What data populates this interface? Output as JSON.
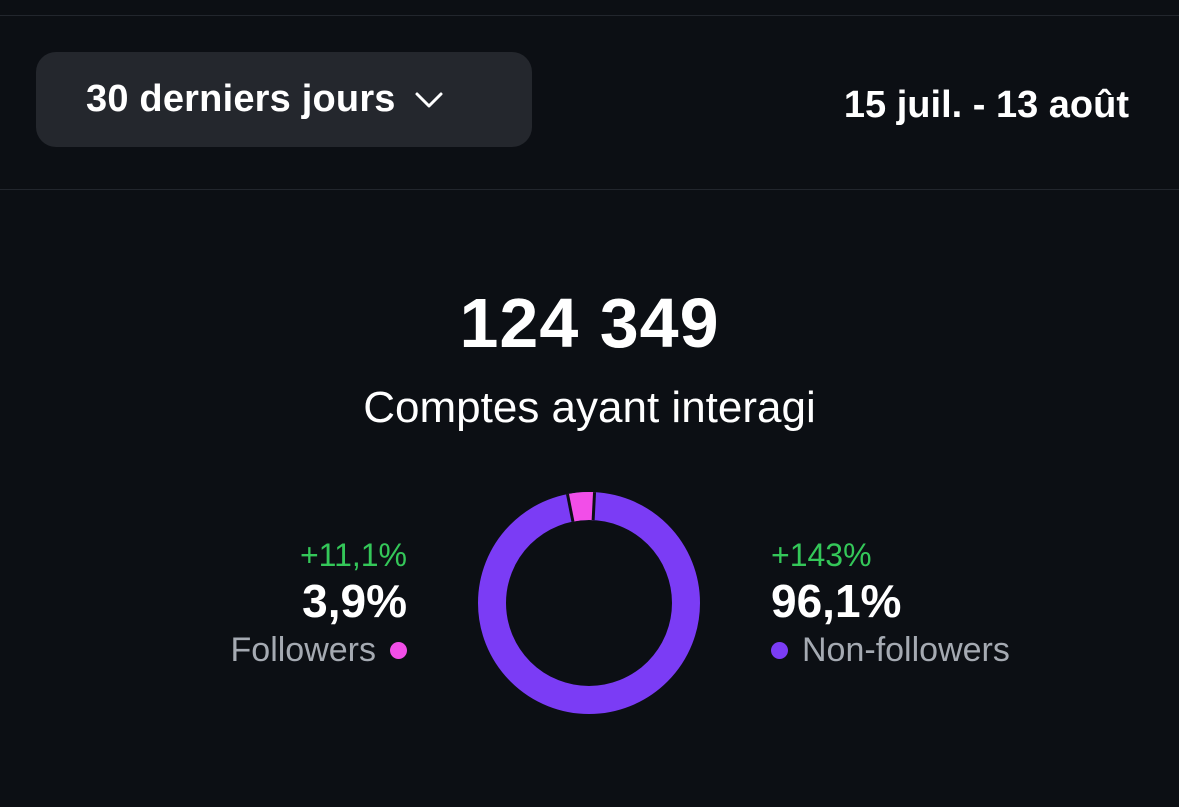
{
  "period": {
    "label": "30 derniers jours",
    "icon": "chevron-down-icon"
  },
  "date_range": "15 juil. - 13 août",
  "summary": {
    "total": "124 349",
    "label": "Comptes ayant interagi"
  },
  "breakdown": {
    "followers": {
      "change": "+11,1%",
      "percent_label": "3,9%",
      "percent": 3.9,
      "legend": "Followers",
      "color": "#f24ee8"
    },
    "non_followers": {
      "change": "+143%",
      "percent_label": "96,1%",
      "percent": 96.1,
      "legend": "Non-followers",
      "color": "#7b3cf5"
    }
  },
  "colors": {
    "positive_change": "#34c759",
    "background": "#0c0f14"
  }
}
